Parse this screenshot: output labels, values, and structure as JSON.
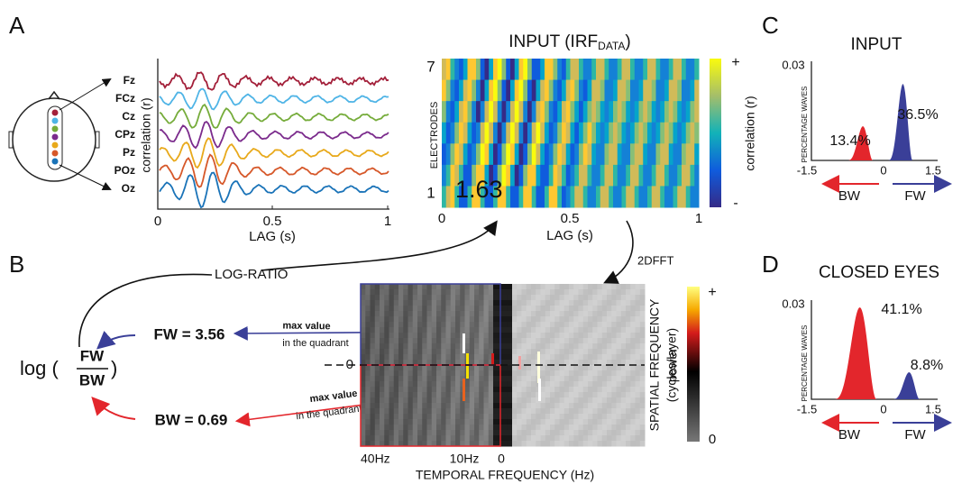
{
  "panels": {
    "a": {
      "letter": "A",
      "electrodes": [
        "Fz",
        "FCz",
        "Cz",
        "CPz",
        "Pz",
        "POz",
        "Oz"
      ],
      "electrode_colors": [
        "#a3203a",
        "#4fb4e6",
        "#76ac3b",
        "#7b2b8c",
        "#e8a91b",
        "#d6582a",
        "#1a73b8"
      ],
      "y_label": "correlation (r)",
      "x_label": "LAG (s)",
      "x_ticks": [
        "0",
        "0.5",
        "1"
      ],
      "heatmap_title": "INPUT (IRF",
      "heatmap_title_sub": "DATA",
      "heatmap_title_end": ")",
      "heatmap_y_label": "ELECTRODES",
      "heatmap_y_ticks": [
        "7",
        "1"
      ],
      "heatmap_x_ticks": [
        "0",
        "0.5",
        "1"
      ],
      "heatmap_x_label": "LAG (s)",
      "colorbar_label": "correlation (r)",
      "colorbar_plus": "+",
      "colorbar_minus": "-",
      "overlay_value": "1.63"
    },
    "b": {
      "letter": "B",
      "log_ratio": "LOG-RATIO",
      "log": "log (",
      "fw": "FW",
      "bw": "BW",
      "close": ")",
      "fw_eq": "FW = 3.56",
      "bw_eq": "BW = 0.69",
      "fw_note": [
        "max value",
        "in the quadrant"
      ],
      "bw_note": [
        "max value",
        "in the quadrant"
      ],
      "fft": "2DFFT",
      "x_ticks": [
        "40Hz",
        "10Hz",
        "0"
      ],
      "x_label": "TEMPORAL FREQUENCY (Hz)",
      "y_tick": "0",
      "y_label": [
        "SPATIAL FREQUENCY",
        "(cycles/layer)"
      ],
      "colorbar_label": "power",
      "colorbar_plus": "+",
      "colorbar_zero": "0"
    },
    "c": {
      "letter": "C",
      "title": "INPUT",
      "y_top": "0.03",
      "y_label": "PERCENTAGE WAVES",
      "x_ticks": [
        "-1.5",
        "0",
        "1.5"
      ],
      "bw_value": "13.4%",
      "fw_value": "36.5%",
      "bw": "BW",
      "fw": "FW"
    },
    "d": {
      "letter": "D",
      "title": "CLOSED EYES",
      "y_top": "0.03",
      "y_label": "PERCENTAGE WAVES",
      "x_ticks": [
        "-1.5",
        "0",
        "1.5"
      ],
      "bw_value": "41.1%",
      "fw_value": "8.8%",
      "bw": "BW",
      "fw": "FW"
    }
  }
}
